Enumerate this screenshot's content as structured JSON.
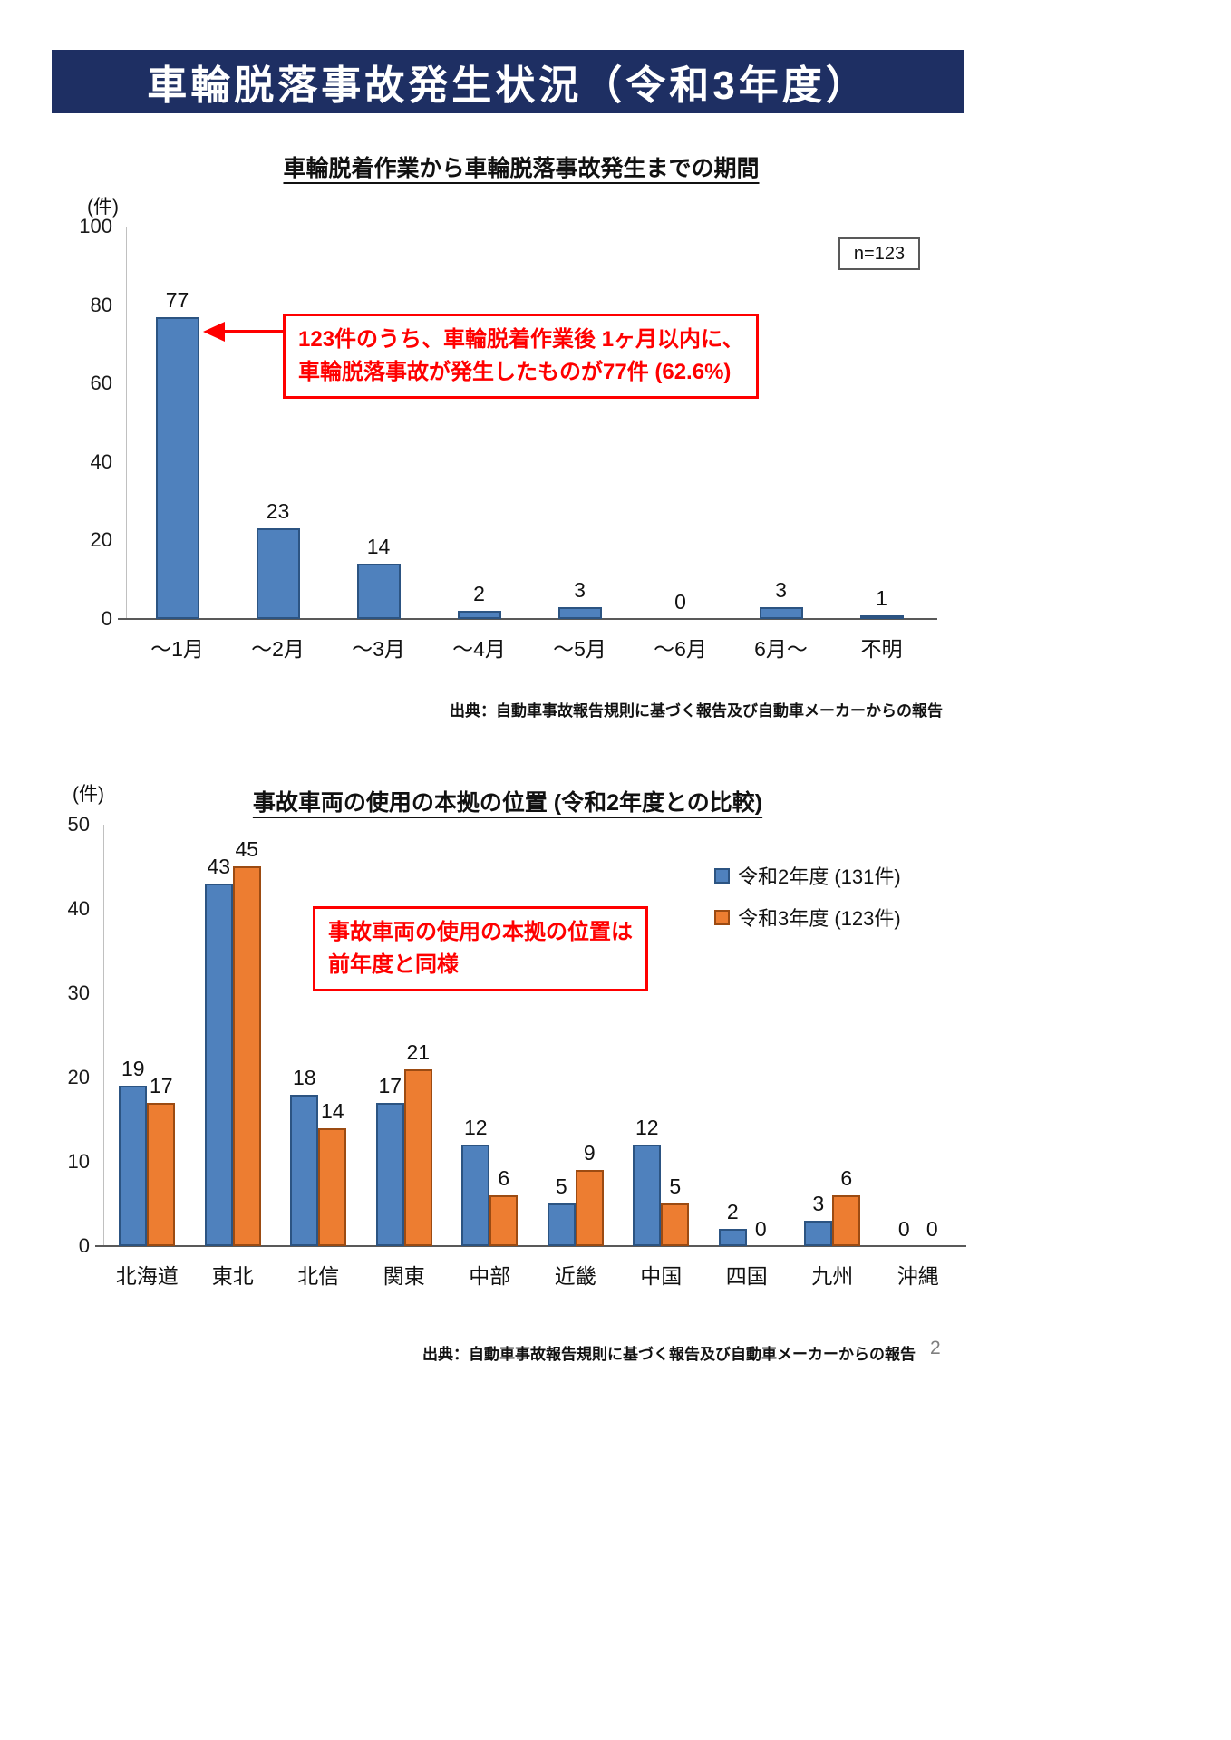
{
  "page": {
    "title": "車輪脱落事故発生状況（令和3年度）",
    "page_number": "2"
  },
  "colors": {
    "banner": "#1e2f63",
    "blue": "#4f81bd",
    "blue_border": "#2c5482",
    "orange": "#ed7d31",
    "orange_border": "#9c4b12",
    "annotation_red": "#ff0000"
  },
  "chart_data": [
    {
      "type": "bar",
      "title": "車輪脱着作業から車輪脱落事故発生までの期間",
      "unit_label": "(件)",
      "n_label": "n=123",
      "categories": [
        "～1月",
        "～2月",
        "～3月",
        "～4月",
        "～5月",
        "～6月",
        "6月～",
        "不明"
      ],
      "values": [
        77,
        23,
        14,
        2,
        3,
        0,
        3,
        1
      ],
      "ylim": [
        0,
        100
      ],
      "yticks": [
        0,
        20,
        40,
        60,
        80,
        100
      ],
      "bar_color": "#4f81bd",
      "bar_border": "#2c5482",
      "grid": "off",
      "annotation": {
        "line1": "123件のうち、車輪脱着作業後 1ヶ月以内に、",
        "line2": "車輪脱落事故が発生したものが77件 (62.6%)"
      },
      "source": "出典：自動車事故報告規則に基づく報告及び自動車メーカーからの報告"
    },
    {
      "type": "bar",
      "title": "事故車両の使用の本拠の位置 (令和2年度との比較)",
      "unit_label": "(件)",
      "categories": [
        "北海道",
        "東北",
        "北信",
        "関東",
        "中部",
        "近畿",
        "中国",
        "四国",
        "九州",
        "沖縄"
      ],
      "series": [
        {
          "name": "令和2年度 (131件)",
          "values": [
            19,
            43,
            18,
            17,
            12,
            5,
            12,
            2,
            3,
            0
          ],
          "color": "#4f81bd",
          "border": "#2c5482"
        },
        {
          "name": "令和3年度 (123件)",
          "values": [
            17,
            45,
            14,
            21,
            6,
            9,
            5,
            0,
            6,
            0
          ],
          "color": "#ed7d31",
          "border": "#9c4b12"
        }
      ],
      "ylim": [
        0,
        50
      ],
      "yticks": [
        0,
        10,
        20,
        30,
        40,
        50
      ],
      "legend_position": "right",
      "grid": "off",
      "annotation": {
        "line1": "事故車両の使用の本拠の位置は",
        "line2": "前年度と同様"
      },
      "source": "出典：自動車事故報告規則に基づく報告及び自動車メーカーからの報告"
    }
  ]
}
